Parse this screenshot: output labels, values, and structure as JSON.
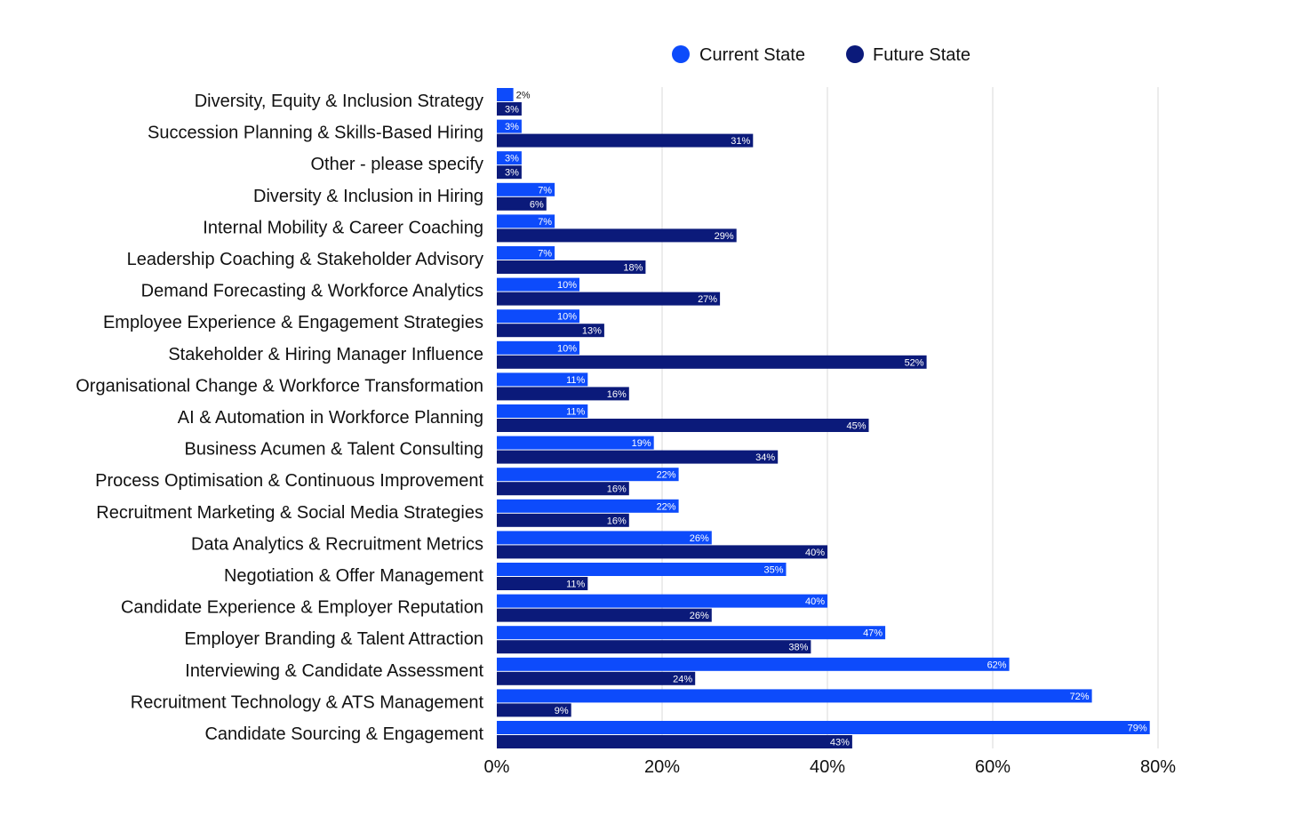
{
  "chart_data": {
    "type": "bar",
    "orientation": "horizontal",
    "title": "",
    "xlabel": "",
    "ylabel": "",
    "xlim": [
      0,
      80
    ],
    "x_ticks": [
      "0%",
      "20%",
      "40%",
      "60%",
      "80%"
    ],
    "grid": true,
    "legend": {
      "placement": "top-center",
      "entries": [
        "Current State",
        "Future State"
      ]
    },
    "categories": [
      "Diversity, Equity & Inclusion Strategy",
      "Succession Planning & Skills-Based Hiring",
      "Other - please specify",
      "Diversity & Inclusion in Hiring",
      "Internal Mobility & Career Coaching",
      "Leadership Coaching & Stakeholder Advisory",
      "Demand Forecasting & Workforce Analytics",
      "Employee Experience & Engagement Strategies",
      "Stakeholder & Hiring Manager Influence",
      "Organisational Change & Workforce Transformation",
      "AI & Automation in Workforce Planning",
      "Business Acumen & Talent Consulting",
      "Process Optimisation & Continuous Improvement",
      "Recruitment Marketing & Social Media Strategies",
      "Data Analytics & Recruitment Metrics",
      "Negotiation & Offer Management",
      "Candidate Experience & Employer Reputation",
      "Employer Branding & Talent Attraction",
      "Interviewing & Candidate Assessment",
      "Recruitment Technology & ATS Management",
      "Candidate Sourcing & Engagement"
    ],
    "series": [
      {
        "name": "Current State",
        "color": "#0D4BFB",
        "values": [
          2,
          3,
          3,
          7,
          7,
          7,
          10,
          10,
          10,
          11,
          11,
          19,
          22,
          22,
          26,
          35,
          40,
          47,
          62,
          72,
          79
        ],
        "labels": [
          "2%",
          "3%",
          "3%",
          "7%",
          "7%",
          "7%",
          "10%",
          "10%",
          "10%",
          "11%",
          "11%",
          "19%",
          "22%",
          "22%",
          "26%",
          "35%",
          "40%",
          "47%",
          "62%",
          "72%",
          "79%"
        ]
      },
      {
        "name": "Future State",
        "color": "#0B1A7A",
        "values": [
          3,
          31,
          3,
          6,
          29,
          18,
          27,
          13,
          52,
          16,
          45,
          34,
          16,
          16,
          40,
          11,
          26,
          38,
          24,
          9,
          43
        ],
        "labels": [
          "3%",
          "31%",
          "3%",
          "6%",
          "29%",
          "18%",
          "27%",
          "13%",
          "52%",
          "16%",
          "45%",
          "34%",
          "16%",
          "16%",
          "40%",
          "11%",
          "26%",
          "38%",
          "24%",
          "9%",
          "43%"
        ]
      }
    ]
  }
}
